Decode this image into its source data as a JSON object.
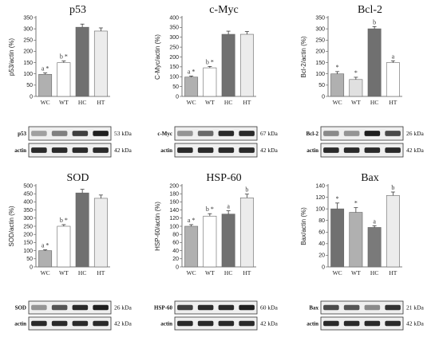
{
  "chart_data": [
    {
      "type": "bar",
      "title": "p53",
      "ylabel": "p53/actin (%)",
      "categories": [
        "WC",
        "WT",
        "HC",
        "HT"
      ],
      "values": [
        98,
        150,
        307,
        290
      ],
      "errors": [
        6,
        7,
        14,
        14
      ],
      "bar_labels": [
        "a *",
        "b *",
        "",
        ""
      ],
      "colors": [
        "#b0b0b0",
        "#ffffff",
        "#707070",
        "#ececec"
      ],
      "ylim": [
        0,
        350
      ],
      "yticks": [
        0,
        50,
        100,
        150,
        200,
        250,
        300,
        350
      ],
      "blot": {
        "bands": [
          {
            "label": "p53",
            "kda": "53 kDa",
            "intensity": [
              0.35,
              0.5,
              0.8,
              0.95
            ]
          },
          {
            "label": "actin",
            "kda": "42 kDa",
            "intensity": [
              0.9,
              0.9,
              0.9,
              0.9
            ]
          }
        ]
      }
    },
    {
      "type": "bar",
      "title": "c-Myc",
      "ylabel": "C-Myc/actin (%)",
      "categories": [
        "WC",
        "WT",
        "HC",
        "HT"
      ],
      "values": [
        98,
        145,
        315,
        315
      ],
      "errors": [
        5,
        7,
        16,
        14
      ],
      "bar_labels": [
        "a *",
        "b *",
        "",
        ""
      ],
      "colors": [
        "#b0b0b0",
        "#ffffff",
        "#707070",
        "#ececec"
      ],
      "ylim": [
        0,
        400
      ],
      "yticks": [
        0,
        50,
        100,
        150,
        200,
        250,
        300,
        350,
        400
      ],
      "blot": {
        "bands": [
          {
            "label": "c-Myc",
            "kda": "67 kDa",
            "intensity": [
              0.4,
              0.6,
              0.9,
              0.9
            ]
          },
          {
            "label": "actin",
            "kda": "42 kDa",
            "intensity": [
              0.9,
              0.9,
              0.9,
              0.9
            ]
          }
        ]
      }
    },
    {
      "type": "bar",
      "title": "Bcl-2",
      "ylabel": "Bcl-2/actin (%)",
      "categories": [
        "WC",
        "WT",
        "HC",
        "HT"
      ],
      "values": [
        100,
        75,
        300,
        150
      ],
      "errors": [
        10,
        10,
        10,
        8
      ],
      "bar_labels": [
        "*",
        "*",
        "b",
        "a"
      ],
      "colors": [
        "#b0b0b0",
        "#e0e0e0",
        "#707070",
        "#ffffff"
      ],
      "ylim": [
        0,
        350
      ],
      "yticks": [
        0,
        50,
        100,
        150,
        200,
        250,
        300,
        350
      ],
      "blot": {
        "bands": [
          {
            "label": "Bcl-2",
            "kda": "26 kDa",
            "intensity": [
              0.45,
              0.4,
              0.95,
              0.75
            ]
          },
          {
            "label": "actin",
            "kda": "42 kDa",
            "intensity": [
              0.9,
              0.9,
              0.9,
              0.9
            ]
          }
        ]
      }
    },
    {
      "type": "bar",
      "title": "SOD",
      "ylabel": "SOD/actin (%)",
      "categories": [
        "WC",
        "WT",
        "HC",
        "HT"
      ],
      "values": [
        100,
        250,
        455,
        422
      ],
      "errors": [
        5,
        10,
        22,
        20
      ],
      "bar_labels": [
        "a *",
        "b *",
        "",
        ""
      ],
      "colors": [
        "#b0b0b0",
        "#ffffff",
        "#707070",
        "#ececec"
      ],
      "ylim": [
        0,
        500
      ],
      "yticks": [
        0,
        50,
        100,
        150,
        200,
        250,
        300,
        350,
        400,
        450,
        500
      ],
      "blot": {
        "bands": [
          {
            "label": "SOD",
            "kda": "26 kDa",
            "intensity": [
              0.4,
              0.7,
              0.9,
              0.95
            ]
          },
          {
            "label": "actin",
            "kda": "42 kDa",
            "intensity": [
              0.9,
              0.9,
              0.9,
              0.9
            ]
          }
        ]
      }
    },
    {
      "type": "bar",
      "title": "HSP-60",
      "ylabel": "HSP-60/actin (%)",
      "categories": [
        "WC",
        "WT",
        "HC",
        "HT"
      ],
      "values": [
        100,
        125,
        130,
        170
      ],
      "errors": [
        4,
        6,
        8,
        9
      ],
      "bar_labels": [
        "a *",
        "b *",
        "a",
        "b"
      ],
      "colors": [
        "#b0b0b0",
        "#ffffff",
        "#707070",
        "#ececec"
      ],
      "ylim": [
        0,
        200
      ],
      "yticks": [
        0,
        20,
        40,
        60,
        80,
        100,
        120,
        140,
        160,
        180,
        200
      ],
      "blot": {
        "bands": [
          {
            "label": "HSP-60",
            "kda": "60 kDa",
            "intensity": [
              0.8,
              0.9,
              0.9,
              0.95
            ]
          },
          {
            "label": "actin",
            "kda": "42 kDa",
            "intensity": [
              0.9,
              0.9,
              0.9,
              0.9
            ]
          }
        ]
      }
    },
    {
      "type": "bar",
      "title": "Bax",
      "ylabel": "Bax/actin (%)",
      "categories": [
        "WC",
        "WT",
        "HC",
        "HT"
      ],
      "values": [
        100,
        94,
        68,
        123
      ],
      "errors": [
        10,
        8,
        3,
        6
      ],
      "bar_labels": [
        "*",
        "*",
        "a",
        "b"
      ],
      "colors": [
        "#707070",
        "#b0b0b0",
        "#7a7a7a",
        "#ececec"
      ],
      "ylim": [
        0,
        140
      ],
      "yticks": [
        0,
        20,
        40,
        60,
        80,
        100,
        120,
        140
      ],
      "blot": {
        "bands": [
          {
            "label": "Bax",
            "kda": "21 kDa",
            "intensity": [
              0.75,
              0.7,
              0.45,
              0.85
            ]
          },
          {
            "label": "actin",
            "kda": "42 kDa",
            "intensity": [
              0.9,
              0.9,
              0.9,
              0.9
            ]
          }
        ]
      }
    }
  ]
}
